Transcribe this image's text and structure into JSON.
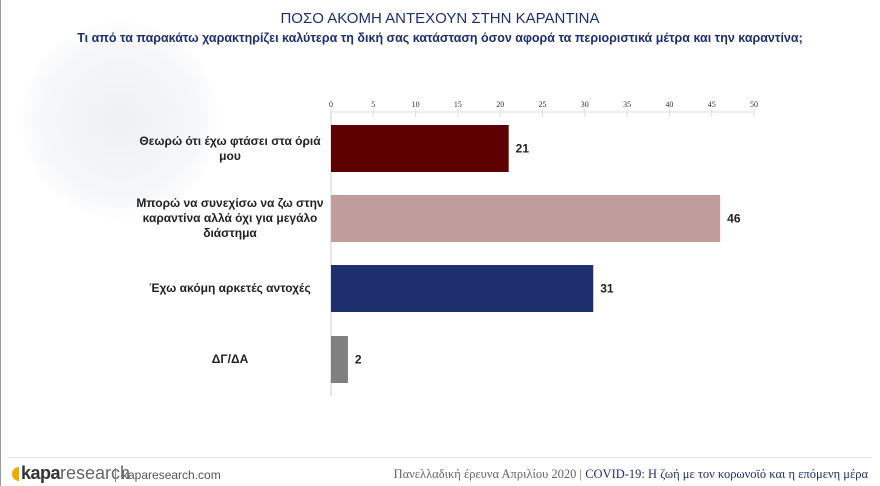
{
  "title": "ΠΟΣΟ ΑΚΟΜΗ ΑΝΤΕΧΟΥΝ ΣΤΗΝ ΚΑΡΑΝΤΙΝΑ",
  "subtitle": "Τι από τα παρακάτω χαρακτηρίζει καλύτερα τη δική σας κατάσταση όσον αφορά τα περιοριστικά μέτρα και την καραντίνα;",
  "chart_data": {
    "type": "bar",
    "orientation": "horizontal",
    "categories": [
      "Θεωρώ ότι έχω φτάσει στα όριά μου",
      "Μπορώ να συνεχίσω να ζω στην καραντίνα αλλά όχι για μεγάλο διάστημα",
      "Έχω ακόμη αρκετές αντοχές",
      "ΔΓ/ΔΑ"
    ],
    "values": [
      21,
      46,
      31,
      2
    ],
    "colors": [
      "#5c0000",
      "#c19c9c",
      "#1e2f6d",
      "#808080"
    ],
    "xlim": [
      0,
      50
    ],
    "xticks": [
      "0",
      "5",
      "10",
      "15",
      "20",
      "25",
      "30",
      "35",
      "40",
      "45",
      "50"
    ],
    "grid": false,
    "axis_position": "top"
  },
  "footer": {
    "logo_bold": "kapa",
    "logo_light": "research",
    "site": "kaparesearch.com",
    "survey": "Πανελλαδική έρευνα Απριλίου 2020 | ",
    "topic": "COVID-19: Η ζωή με τον κορωνοϊό και η επόμενη μέρα"
  }
}
